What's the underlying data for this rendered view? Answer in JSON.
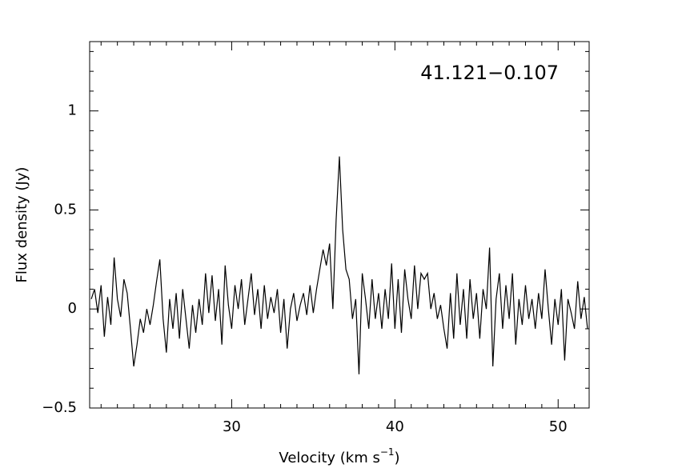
{
  "chart_data": {
    "type": "line",
    "title": "41.121−0.107",
    "xlabel": "Velocity (km s",
    "xlabel_sup": "−1",
    "xlabel_end": ")",
    "ylabel": "Flux density (Jy)",
    "color": "#000000",
    "xlim": [
      21.3,
      51.9
    ],
    "ylim": [
      -0.5,
      1.35
    ],
    "xticks": [
      30,
      40,
      50
    ],
    "yticks": [
      {
        "value": -0.5,
        "label": "−0.5"
      },
      0,
      0.5,
      1
    ],
    "xminorticks": [
      22,
      23,
      24,
      25,
      26,
      27,
      28,
      29,
      31,
      32,
      33,
      34,
      35,
      36,
      37,
      38,
      39,
      41,
      42,
      43,
      44,
      45,
      46,
      47,
      48,
      49,
      51
    ],
    "yminorticks": [
      -0.4,
      -0.3,
      -0.2,
      -0.1,
      0.1,
      0.2,
      0.3,
      0.4,
      0.6,
      0.7,
      0.8,
      0.9,
      1.1,
      1.2,
      1.3
    ],
    "x": [
      21.4,
      21.6,
      21.8,
      22.0,
      22.2,
      22.4,
      22.6,
      22.8,
      23.0,
      23.2,
      23.4,
      23.6,
      23.8,
      24.0,
      24.2,
      24.4,
      24.6,
      24.8,
      25.0,
      25.2,
      25.4,
      25.6,
      25.8,
      26.0,
      26.2,
      26.4,
      26.6,
      26.8,
      27.0,
      27.2,
      27.4,
      27.6,
      27.8,
      28.0,
      28.2,
      28.4,
      28.6,
      28.8,
      29.0,
      29.2,
      29.4,
      29.6,
      29.8,
      30.0,
      30.2,
      30.4,
      30.6,
      30.8,
      31.0,
      31.2,
      31.4,
      31.6,
      31.8,
      32.0,
      32.2,
      32.4,
      32.6,
      32.8,
      33.0,
      33.2,
      33.4,
      33.6,
      33.8,
      34.0,
      34.2,
      34.4,
      34.6,
      34.8,
      35.0,
      35.2,
      35.4,
      35.6,
      35.8,
      36.0,
      36.2,
      36.4,
      36.6,
      36.8,
      37.0,
      37.2,
      37.4,
      37.6,
      37.8,
      38.0,
      38.2,
      38.4,
      38.6,
      38.8,
      39.0,
      39.2,
      39.4,
      39.6,
      39.8,
      40.0,
      40.2,
      40.4,
      40.6,
      40.8,
      41.0,
      41.2,
      41.4,
      41.6,
      41.8,
      42.0,
      42.2,
      42.4,
      42.6,
      42.8,
      43.0,
      43.2,
      43.4,
      43.6,
      43.8,
      44.0,
      44.2,
      44.4,
      44.6,
      44.8,
      45.0,
      45.2,
      45.4,
      45.6,
      45.8,
      46.0,
      46.2,
      46.4,
      46.6,
      46.8,
      47.0,
      47.2,
      47.4,
      47.6,
      47.8,
      48.0,
      48.2,
      48.4,
      48.6,
      48.8,
      49.0,
      49.2,
      49.4,
      49.6,
      49.8,
      50.0,
      50.2,
      50.4,
      50.6,
      50.8,
      51.0,
      51.2,
      51.4,
      51.6,
      51.8
    ],
    "values": [
      0.05,
      0.1,
      -0.02,
      0.12,
      -0.14,
      0.06,
      -0.08,
      0.26,
      0.05,
      -0.04,
      0.15,
      0.08,
      -0.1,
      -0.29,
      -0.18,
      -0.05,
      -0.12,
      0,
      -0.08,
      0.02,
      0.14,
      0.25,
      -0.05,
      -0.22,
      0.05,
      -0.1,
      0.08,
      -0.15,
      0.1,
      -0.05,
      -0.2,
      0.02,
      -0.12,
      0.05,
      -0.08,
      0.18,
      -0.02,
      0.17,
      -0.06,
      0.1,
      -0.18,
      0.22,
      0.02,
      -0.1,
      0.12,
      0,
      0.15,
      -0.08,
      0.05,
      0.18,
      -0.03,
      0.1,
      -0.1,
      0.12,
      -0.05,
      0.06,
      -0.02,
      0.1,
      -0.12,
      0.05,
      -0.2,
      0,
      0.08,
      -0.06,
      0.02,
      0.08,
      -0.03,
      0.12,
      -0.02,
      0.1,
      0.2,
      0.3,
      0.22,
      0.33,
      0,
      0.45,
      0.77,
      0.4,
      0.2,
      0.15,
      -0.05,
      0.05,
      -0.33,
      0.18,
      0.05,
      -0.1,
      0.15,
      -0.05,
      0.08,
      -0.1,
      0.1,
      -0.05,
      0.23,
      -0.1,
      0.15,
      -0.12,
      0.2,
      0.05,
      -0.05,
      0.22,
      0,
      0.18,
      0.15,
      0.18,
      0,
      0.08,
      -0.05,
      0.02,
      -0.1,
      -0.2,
      0.08,
      -0.15,
      0.18,
      -0.08,
      0.1,
      -0.15,
      0.15,
      -0.05,
      0.08,
      -0.15,
      0.1,
      0,
      0.31,
      -0.29,
      0.05,
      0.18,
      -0.1,
      0.12,
      -0.05,
      0.18,
      -0.18,
      0.05,
      -0.08,
      0.12,
      -0.05,
      0.05,
      -0.1,
      0.08,
      -0.05,
      0.2,
      0,
      -0.18,
      0.05,
      -0.08,
      0.1,
      -0.26,
      0.05,
      -0.02,
      -0.1,
      0.14,
      -0.05,
      0.06,
      -0.1
    ]
  }
}
